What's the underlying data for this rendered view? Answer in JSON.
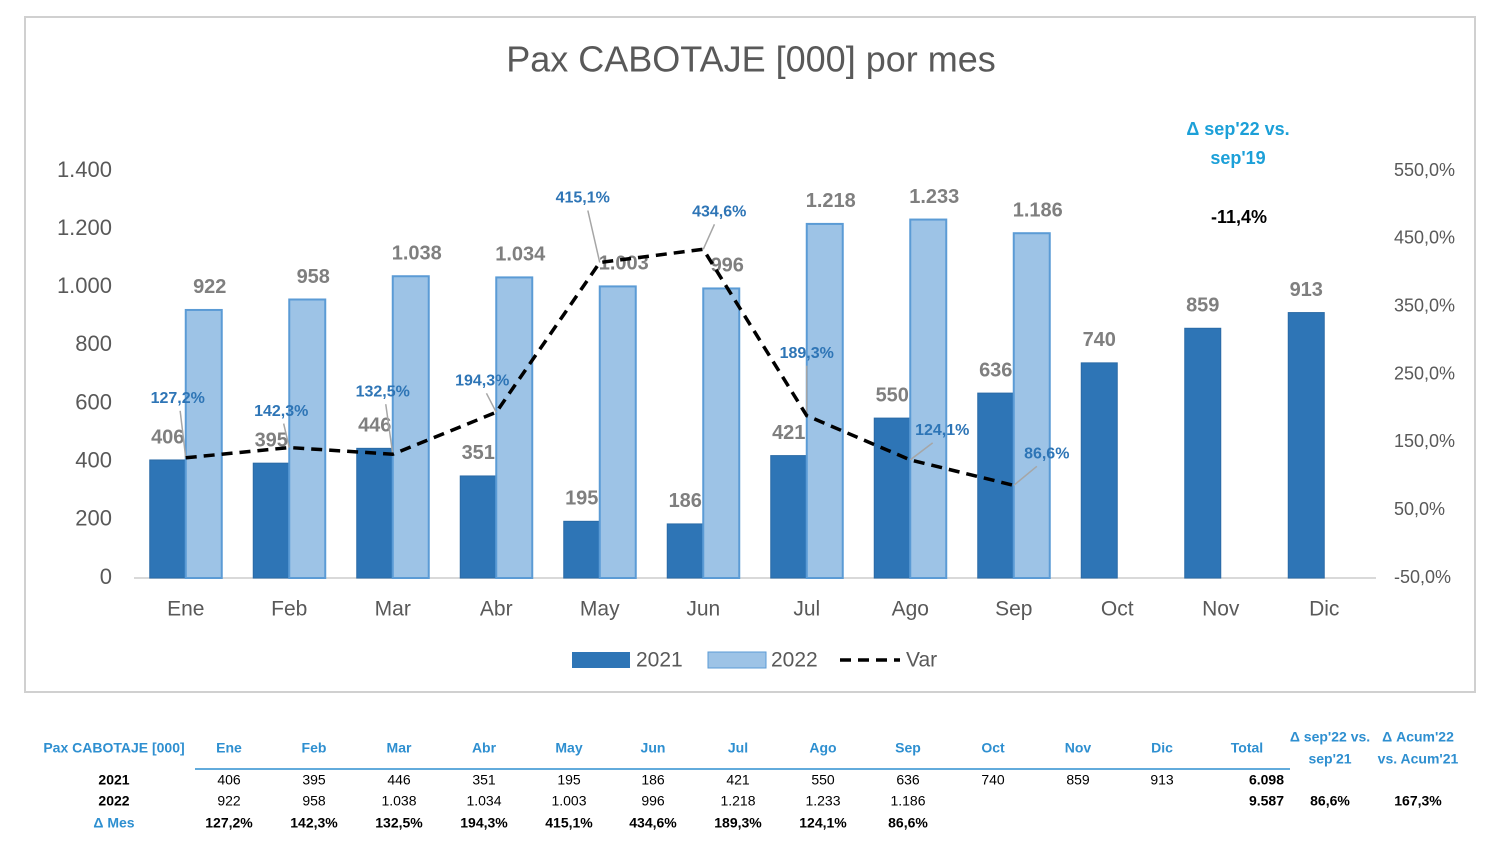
{
  "chart_data": {
    "type": "bar_line",
    "title": "Pax CABOTAJE [000] por mes",
    "categories": [
      "Ene",
      "Feb",
      "Mar",
      "Abr",
      "May",
      "Jun",
      "Jul",
      "Ago",
      "Sep",
      "Oct",
      "Nov",
      "Dic"
    ],
    "series": [
      {
        "name": "2021",
        "color": "#2e75b6",
        "values": [
          406,
          395,
          446,
          351,
          195,
          186,
          421,
          550,
          636,
          740,
          859,
          913
        ]
      },
      {
        "name": "2022",
        "color": "#9dc3e6",
        "values": [
          922,
          958,
          1038,
          1034,
          1003,
          996,
          1218,
          1233,
          1186,
          null,
          null,
          null
        ],
        "value_labels": [
          "922",
          "958",
          "1.038",
          "1.034",
          "1.003",
          "996",
          "1.218",
          "1.233",
          "1.186",
          null,
          null,
          null
        ]
      },
      {
        "name": "Var",
        "color": "#000000",
        "type": "line",
        "axis": "y2",
        "values": [
          127.2,
          142.3,
          132.5,
          194.3,
          415.1,
          434.6,
          189.3,
          124.1,
          86.6,
          null,
          null,
          null
        ],
        "value_labels": [
          "127,2%",
          "142,3%",
          "132,5%",
          "194,3%",
          "415,1%",
          "434,6%",
          "189,3%",
          "124,1%",
          "86,6%",
          null,
          null,
          null
        ]
      }
    ],
    "ylim": [
      0,
      1400
    ],
    "yticks": [
      0,
      200,
      400,
      600,
      800,
      {
        "value": 1000,
        "label": "1.000"
      },
      {
        "value": 1200,
        "label": "1.200"
      },
      {
        "value": 1400,
        "label": "1.400"
      }
    ],
    "y2lim": [
      -50,
      550
    ],
    "y2ticks": [
      {
        "value": -50,
        "label": "-50,0%"
      },
      {
        "value": 50,
        "label": "50,0%"
      },
      {
        "value": 150,
        "label": "150,0%"
      },
      {
        "value": 250,
        "label": "250,0%"
      },
      {
        "value": 350,
        "label": "350,0%"
      },
      {
        "value": 450,
        "label": "450,0%"
      },
      {
        "value": 550,
        "label": "550,0%"
      }
    ],
    "legend": "bottom",
    "annotations": [
      {
        "text": "Δ sep'22 vs."
      },
      {
        "text": "sep'19"
      },
      {
        "text": "-11,4%"
      }
    ]
  },
  "table": {
    "header": [
      "Pax CABOTAJE [000]",
      "Ene",
      "Feb",
      "Mar",
      "Abr",
      "May",
      "Jun",
      "Jul",
      "Ago",
      "Sep",
      "Oct",
      "Nov",
      "Dic",
      "Total"
    ],
    "delta_headers": [
      [
        "Δ sep'22 vs.",
        "sep'21"
      ],
      [
        "Δ Acum'22",
        "vs. Acum'21"
      ]
    ],
    "rows": [
      {
        "label": "2021",
        "cells": [
          "406",
          "395",
          "446",
          "351",
          "195",
          "186",
          "421",
          "550",
          "636",
          "740",
          "859",
          "913"
        ],
        "total": "6.098"
      },
      {
        "label": "2022",
        "cells": [
          "922",
          "958",
          "1.038",
          "1.034",
          "1.003",
          "996",
          "1.218",
          "1.233",
          "1.186",
          null,
          null,
          null
        ],
        "total": "9.587",
        "deltas": [
          "86,6%",
          "167,3%"
        ]
      },
      {
        "label": "Δ Mes",
        "cells": [
          "127,2%",
          "142,3%",
          "132,5%",
          "194,3%",
          "415,1%",
          "434,6%",
          "189,3%",
          "124,1%",
          "86,6%",
          null,
          null,
          null
        ]
      }
    ]
  }
}
